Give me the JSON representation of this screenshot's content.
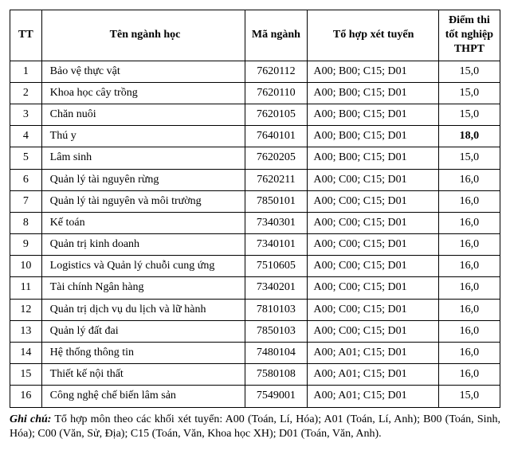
{
  "table": {
    "headers": {
      "tt": "TT",
      "name": "Tên ngành học",
      "code": "Mã ngành",
      "combo": "Tổ hợp xét tuyển",
      "score": "Điểm thi tốt nghiệp THPT"
    },
    "rows": [
      {
        "tt": "1",
        "name": "Bảo vệ thực vật",
        "code": "7620112",
        "combo": "A00; B00; C15; D01",
        "score": "15,0",
        "score_bold": false
      },
      {
        "tt": "2",
        "name": "Khoa học cây trồng",
        "code": "7620110",
        "combo": "A00; B00; C15; D01",
        "score": "15,0",
        "score_bold": false
      },
      {
        "tt": "3",
        "name": "Chăn nuôi",
        "code": "7620105",
        "combo": "A00; B00; C15; D01",
        "score": "15,0",
        "score_bold": false
      },
      {
        "tt": "4",
        "name": "Thú y",
        "code": "7640101",
        "combo": "A00; B00; C15; D01",
        "score": "18,0",
        "score_bold": true
      },
      {
        "tt": "5",
        "name": "Lâm sinh",
        "code": "7620205",
        "combo": "A00; B00; C15; D01",
        "score": "15,0",
        "score_bold": false
      },
      {
        "tt": "6",
        "name": "Quản lý tài nguyên rừng",
        "code": "7620211",
        "combo": "A00; C00; C15; D01",
        "score": "16,0",
        "score_bold": false
      },
      {
        "tt": "7",
        "name": "Quản lý tài nguyên và môi trường",
        "code": "7850101",
        "combo": "A00; C00; C15; D01",
        "score": "16,0",
        "score_bold": false
      },
      {
        "tt": "8",
        "name": "Kế toán",
        "code": "7340301",
        "combo": "A00; C00; C15; D01",
        "score": "16,0",
        "score_bold": false
      },
      {
        "tt": "9",
        "name": "Quản trị kinh doanh",
        "code": "7340101",
        "combo": "A00; C00; C15; D01",
        "score": "16,0",
        "score_bold": false
      },
      {
        "tt": "10",
        "name": "Logistics và Quản lý chuỗi cung ứng",
        "code": "7510605",
        "combo": "A00; C00; C15; D01",
        "score": "16,0",
        "score_bold": false
      },
      {
        "tt": "11",
        "name": "Tài chính Ngân hàng",
        "code": "7340201",
        "combo": "A00; C00; C15; D01",
        "score": "16,0",
        "score_bold": false
      },
      {
        "tt": "12",
        "name": "Quản trị dịch vụ du lịch và lữ hành",
        "code": "7810103",
        "combo": "A00; C00; C15; D01",
        "score": "16,0",
        "score_bold": false
      },
      {
        "tt": "13",
        "name": "Quản lý đất đai",
        "code": "7850103",
        "combo": "A00; C00; C15; D01",
        "score": "16,0",
        "score_bold": false
      },
      {
        "tt": "14",
        "name": "Hệ thống thông tin",
        "code": "7480104",
        "combo": "A00; A01; C15; D01",
        "score": "16,0",
        "score_bold": false
      },
      {
        "tt": "15",
        "name": "Thiết kế nội thất",
        "code": "7580108",
        "combo": "A00; A01; C15; D01",
        "score": "16,0",
        "score_bold": false
      },
      {
        "tt": "16",
        "name": "Công nghệ chế biến lâm sản",
        "code": "7549001",
        "combo": "A00; A01; C15; D01",
        "score": "15,0",
        "score_bold": false
      }
    ]
  },
  "note": {
    "label": "Ghi chú:",
    "text": " Tổ hợp môn theo các khối xét tuyển: A00 (Toán, Lí, Hóa); A01 (Toán, Lí, Anh); B00 (Toán, Sinh, Hóa); C00 (Văn, Sử, Địa); C15 (Toán, Văn, Khoa học XH); D01 (Toán, Văn, Anh)."
  }
}
